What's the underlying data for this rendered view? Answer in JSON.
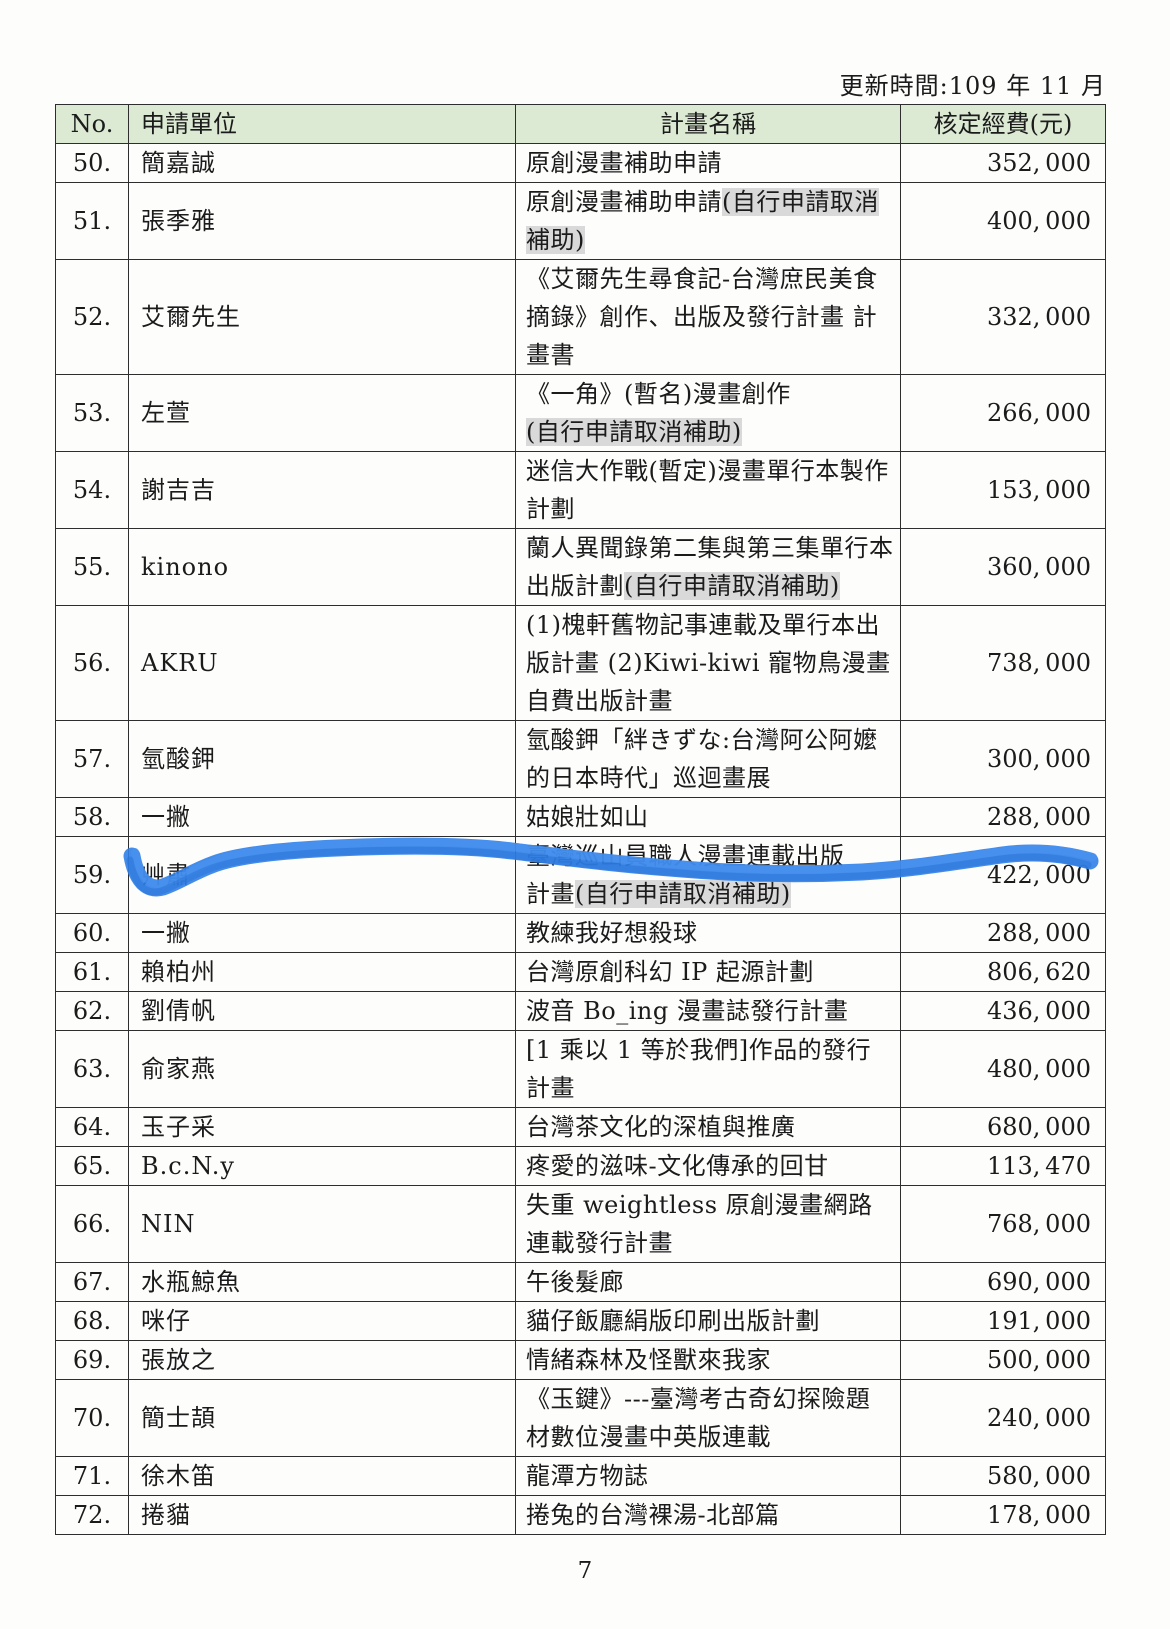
{
  "document": {
    "update_time": "更新時間:109 年 11 月",
    "page_number": "7"
  },
  "table": {
    "columns": [
      "No.",
      "申請單位",
      "計畫名稱",
      "核定經費(元)"
    ],
    "rows": [
      {
        "no": "50.",
        "applicant": "簡嘉誠",
        "project": [
          {
            "t": "原創漫畫補助申請"
          }
        ],
        "amount": "352,000"
      },
      {
        "no": "51.",
        "applicant": "張季雅",
        "project": [
          {
            "t": "原創漫畫補助申請"
          },
          {
            "t": "(自行申請取消補助)",
            "h": true
          }
        ],
        "amount": "400,000"
      },
      {
        "no": "52.",
        "applicant": "艾爾先生",
        "project": [
          {
            "t": "《艾爾先生尋食記-台灣庶民美食摘錄》創作、出版及發行計畫 計畫書"
          }
        ],
        "amount": "332,000"
      },
      {
        "no": "53.",
        "applicant": "左萱",
        "project": [
          {
            "t": "《一角》(暫名)漫畫創作"
          },
          {
            "br": true
          },
          {
            "t": "(自行申請取消補助)",
            "h": true
          }
        ],
        "amount": "266,000"
      },
      {
        "no": "54.",
        "applicant": "謝吉吉",
        "project": [
          {
            "t": "迷信大作戰(暫定)漫畫單行本製作計劃"
          }
        ],
        "amount": "153,000"
      },
      {
        "no": "55.",
        "applicant": "kinono",
        "project": [
          {
            "t": "蘭人異聞錄第二集與第三集單行本出版計劃"
          },
          {
            "t": "(自行申請取消補助)",
            "h": true
          }
        ],
        "amount": "360,000"
      },
      {
        "no": "56.",
        "applicant": "AKRU",
        "project": [
          {
            "t": "(1)槐軒舊物記事連載及單行本出版計畫 (2)Kiwi-kiwi 寵物鳥漫畫自費出版計畫"
          }
        ],
        "amount": "738,000"
      },
      {
        "no": "57.",
        "applicant": "氫酸鉀",
        "project": [
          {
            "t": "氫酸鉀「絆きずな:台灣阿公阿嬤的日本時代」巡迴畫展"
          }
        ],
        "amount": "300,000"
      },
      {
        "no": "58.",
        "applicant": "一撇",
        "project": [
          {
            "t": "姑娘壯如山"
          }
        ],
        "amount": "288,000"
      },
      {
        "no": "59.",
        "applicant": "艸肅",
        "project": [
          {
            "t": "臺灣巡山員職人漫畫連載出版"
          },
          {
            "br": true
          },
          {
            "t": "計畫"
          },
          {
            "t": "(自行申請取消補助)",
            "h": true
          }
        ],
        "amount": "422,000"
      },
      {
        "no": "60.",
        "applicant": "一撇",
        "project": [
          {
            "t": "教練我好想殺球"
          }
        ],
        "amount": "288,000"
      },
      {
        "no": "61.",
        "applicant": "賴柏州",
        "project": [
          {
            "t": "台灣原創科幻 IP 起源計劃"
          }
        ],
        "amount": "806,620"
      },
      {
        "no": "62.",
        "applicant": "劉倩帆",
        "project": [
          {
            "t": "波音 Bo_ing 漫畫誌發行計畫"
          }
        ],
        "amount": "436,000"
      },
      {
        "no": "63.",
        "applicant": "俞家燕",
        "project": [
          {
            "t": "[1 乘以 1 等於我們]作品的發行計畫"
          }
        ],
        "amount": "480,000"
      },
      {
        "no": "64.",
        "applicant": "玉子采",
        "project": [
          {
            "t": "台灣茶文化的深植與推廣"
          }
        ],
        "amount": "680,000"
      },
      {
        "no": "65.",
        "applicant": "B.c.N.y",
        "project": [
          {
            "t": "疼愛的滋味-文化傳承的回甘"
          }
        ],
        "amount": "113,470"
      },
      {
        "no": "66.",
        "applicant": "NIN",
        "project": [
          {
            "t": "失重 weightless 原創漫畫網路連載發行計畫"
          }
        ],
        "amount": "768,000"
      },
      {
        "no": "67.",
        "applicant": "水瓶鯨魚",
        "project": [
          {
            "t": "午後髮廊"
          }
        ],
        "amount": "690,000"
      },
      {
        "no": "68.",
        "applicant": "咪仔",
        "project": [
          {
            "t": "貓仔飯廳絹版印刷出版計劃"
          }
        ],
        "amount": "191,000"
      },
      {
        "no": "69.",
        "applicant": "張放之",
        "project": [
          {
            "t": "情緒森林及怪獸來我家"
          }
        ],
        "amount": "500,000"
      },
      {
        "no": "70.",
        "applicant": "簡士頡",
        "project": [
          {
            "t": "《玉鍵》---臺灣考古奇幻探險題材數位漫畫中英版連載"
          }
        ],
        "amount": "240,000"
      },
      {
        "no": "71.",
        "applicant": "徐木笛",
        "project": [
          {
            "t": "龍潭方物誌"
          }
        ],
        "amount": "580,000"
      },
      {
        "no": "72.",
        "applicant": "捲貓",
        "project": [
          {
            "t": "捲兔的台灣裸湯-北部篇"
          }
        ],
        "amount": "178,000"
      }
    ]
  },
  "annotation": {
    "type": "blue-marker-scribble",
    "description": "hand-drawn blue crayon stroke crossing rows 58-59",
    "color": "#2f80e8"
  },
  "colors": {
    "header_bg": "#dcead3",
    "highlight_bg": "#d9d9d9",
    "border": "#2e2e2e",
    "scribble_blue": "#2f80e8"
  }
}
